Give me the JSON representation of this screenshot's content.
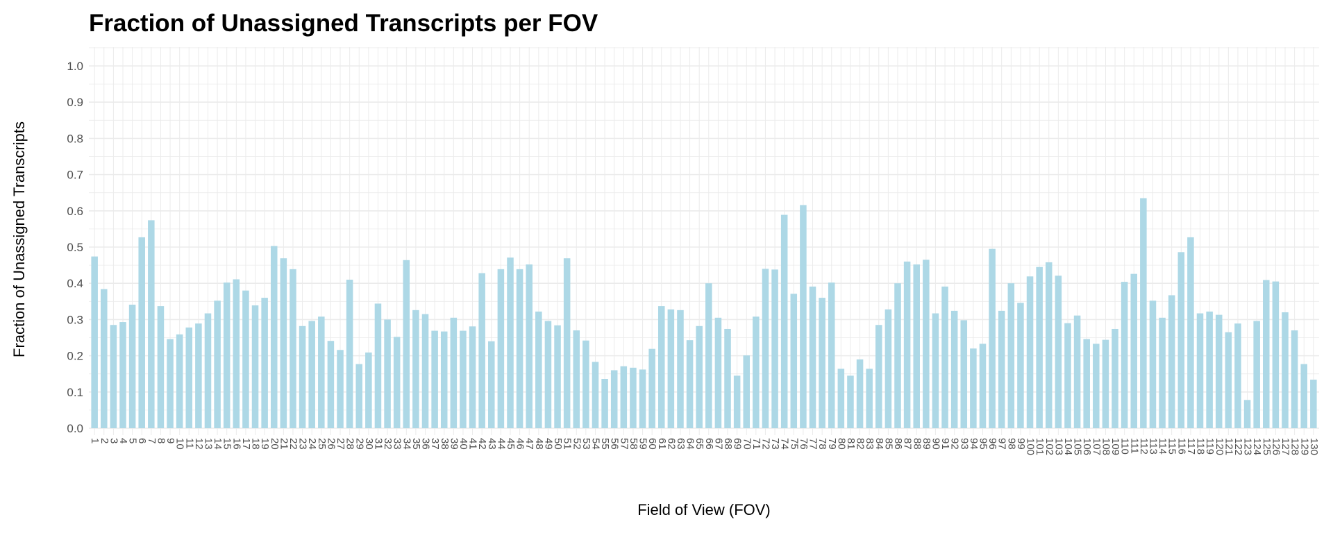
{
  "chart_data": {
    "type": "bar",
    "title": "Fraction of Unassigned Transcripts per FOV",
    "xlabel": "Field of View (FOV)",
    "ylabel": "Fraction of Unassigned Transcripts",
    "ylim": [
      0,
      1.0
    ],
    "yticks": [
      "0.0",
      "0.1",
      "0.2",
      "0.3",
      "0.4",
      "0.5",
      "0.6",
      "0.7",
      "0.8",
      "0.9",
      "1.0"
    ],
    "grid": true,
    "bar_color": "#add8e6",
    "grid_color": "#ebebeb",
    "categories": [
      "1",
      "2",
      "3",
      "4",
      "5",
      "6",
      "7",
      "8",
      "9",
      "10",
      "11",
      "12",
      "13",
      "14",
      "15",
      "16",
      "17",
      "18",
      "19",
      "20",
      "21",
      "22",
      "23",
      "24",
      "25",
      "26",
      "27",
      "28",
      "29",
      "30",
      "31",
      "32",
      "33",
      "34",
      "35",
      "36",
      "37",
      "38",
      "39",
      "40",
      "41",
      "42",
      "43",
      "44",
      "45",
      "46",
      "47",
      "48",
      "49",
      "50",
      "51",
      "52",
      "53",
      "54",
      "55",
      "56",
      "57",
      "58",
      "59",
      "60",
      "61",
      "62",
      "63",
      "64",
      "65",
      "66",
      "67",
      "68",
      "69",
      "70",
      "71",
      "72",
      "73",
      "74",
      "75",
      "76",
      "77",
      "78",
      "79",
      "80",
      "81",
      "82",
      "83",
      "84",
      "85",
      "86",
      "87",
      "88",
      "89",
      "90",
      "91",
      "92",
      "93",
      "94",
      "95",
      "96",
      "97",
      "98",
      "99",
      "100",
      "101",
      "102",
      "103",
      "104",
      "105",
      "106",
      "107",
      "108",
      "109",
      "110",
      "111",
      "112",
      "113",
      "114",
      "115",
      "116",
      "117",
      "118",
      "119",
      "120",
      "121",
      "122",
      "123",
      "124",
      "125",
      "126",
      "127",
      "128",
      "129",
      "130"
    ],
    "values": [
      0.474,
      0.384,
      0.285,
      0.293,
      0.341,
      0.527,
      0.574,
      0.337,
      0.246,
      0.259,
      0.278,
      0.289,
      0.317,
      0.352,
      0.402,
      0.411,
      0.38,
      0.339,
      0.36,
      0.503,
      0.469,
      0.439,
      0.282,
      0.296,
      0.308,
      0.241,
      0.216,
      0.41,
      0.177,
      0.209,
      0.344,
      0.3,
      0.252,
      0.464,
      0.326,
      0.315,
      0.269,
      0.267,
      0.305,
      0.269,
      0.281,
      0.428,
      0.24,
      0.439,
      0.471,
      0.439,
      0.452,
      0.322,
      0.296,
      0.284,
      0.469,
      0.27,
      0.242,
      0.183,
      0.136,
      0.16,
      0.171,
      0.167,
      0.162,
      0.219,
      0.337,
      0.328,
      0.326,
      0.243,
      0.282,
      0.4,
      0.305,
      0.274,
      0.145,
      0.201,
      0.308,
      0.44,
      0.438,
      0.589,
      0.371,
      0.616,
      0.391,
      0.36,
      0.402,
      0.164,
      0.145,
      0.19,
      0.164,
      0.285,
      0.328,
      0.4,
      0.46,
      0.452,
      0.465,
      0.317,
      0.391,
      0.324,
      0.298,
      0.22,
      0.233,
      0.495,
      0.324,
      0.4,
      0.346,
      0.419,
      0.445,
      0.458,
      0.421,
      0.29,
      0.311,
      0.246,
      0.233,
      0.244,
      0.274,
      0.404,
      0.426,
      0.635,
      0.352,
      0.305,
      0.367,
      0.486,
      0.527,
      0.317,
      0.322,
      0.313,
      0.265,
      0.289,
      0.078,
      0.296,
      0.409,
      0.405,
      0.32,
      0.27,
      0.177,
      0.134
    ]
  }
}
